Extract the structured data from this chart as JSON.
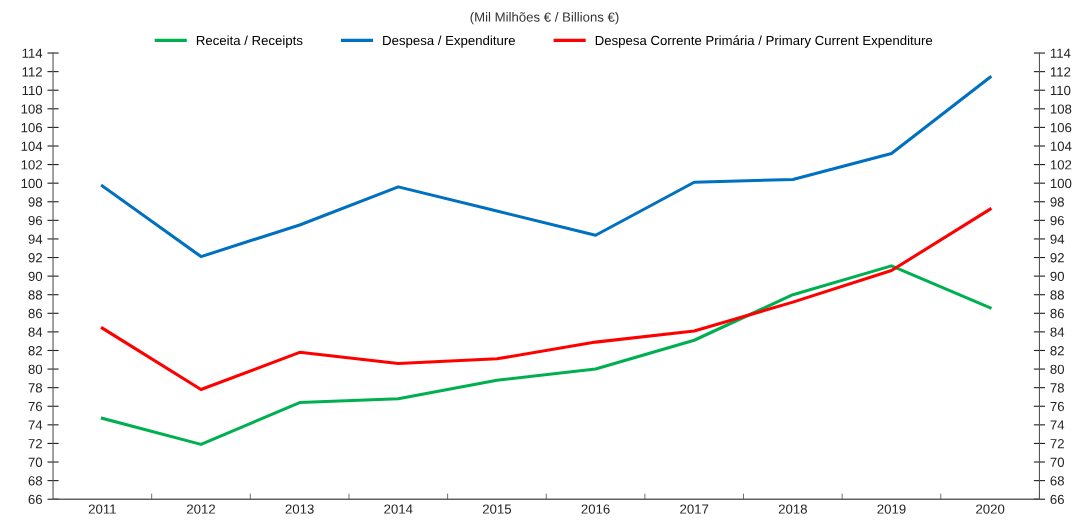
{
  "chart_data": {
    "type": "line",
    "title": "(Mil Milhões € / Billions €)",
    "categories": [
      "2011",
      "2012",
      "2013",
      "2014",
      "2015",
      "2016",
      "2017",
      "2018",
      "2019",
      "2020"
    ],
    "series": [
      {
        "name": "Receita / Receipts",
        "color": "#00b050",
        "values": [
          74.7,
          71.9,
          76.4,
          76.8,
          78.8,
          80.0,
          83.1,
          88.0,
          91.1,
          86.6
        ]
      },
      {
        "name": "Despesa / Expenditure",
        "color": "#0070c0",
        "values": [
          99.7,
          92.1,
          95.5,
          99.6,
          97.0,
          94.4,
          100.1,
          100.4,
          103.2,
          111.4
        ]
      },
      {
        "name": "Despesa Corrente Primária / Primary Current Expenditure",
        "color": "#ff0000",
        "values": [
          84.4,
          77.8,
          81.8,
          80.6,
          81.1,
          82.9,
          84.1,
          87.2,
          90.6,
          97.2
        ]
      }
    ],
    "ylim": [
      66,
      114
    ],
    "yticks": [
      66,
      68,
      70,
      72,
      74,
      76,
      78,
      80,
      82,
      84,
      86,
      88,
      90,
      92,
      94,
      96,
      98,
      100,
      102,
      104,
      106,
      108,
      110,
      112,
      114
    ],
    "y2lim": [
      66,
      114
    ],
    "y2ticks": [
      66,
      68,
      70,
      72,
      74,
      76,
      78,
      80,
      82,
      84,
      86,
      88,
      90,
      92,
      94,
      96,
      98,
      100,
      102,
      104,
      106,
      108,
      110,
      112,
      114
    ],
    "grid": false,
    "legend": "top",
    "marker": "none",
    "line_style": "solid"
  }
}
